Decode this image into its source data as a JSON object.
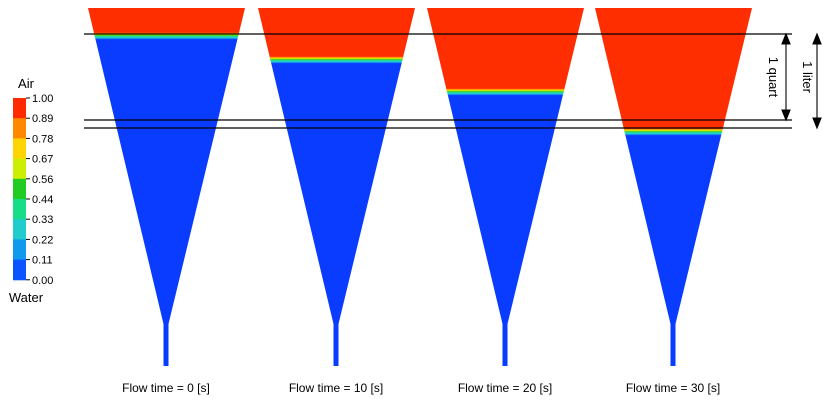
{
  "legend": {
    "top_label": "Air",
    "bottom_label": "Water",
    "ticks": [
      "1.00",
      "0.89",
      "0.78",
      "0.67",
      "0.56",
      "0.44",
      "0.33",
      "0.22",
      "0.11",
      "0.00"
    ],
    "colors": [
      "#ff2a00",
      "#ff8800",
      "#ffd400",
      "#ccee00",
      "#22cc22",
      "#18dd88",
      "#22cccc",
      "#1199ee",
      "#0a55ff"
    ]
  },
  "colors": {
    "air": "#ff2e00",
    "water": "#0a3cff"
  },
  "panels": [
    {
      "caption": "Flow time = 0 [s]"
    },
    {
      "caption": "Flow time = 10 [s]"
    },
    {
      "caption": "Flow time = 20 [s]"
    },
    {
      "caption": "Flow time = 30 [s]"
    }
  ],
  "annotations": {
    "liter_label": "1 liter",
    "quart_label": "1 quart"
  }
}
